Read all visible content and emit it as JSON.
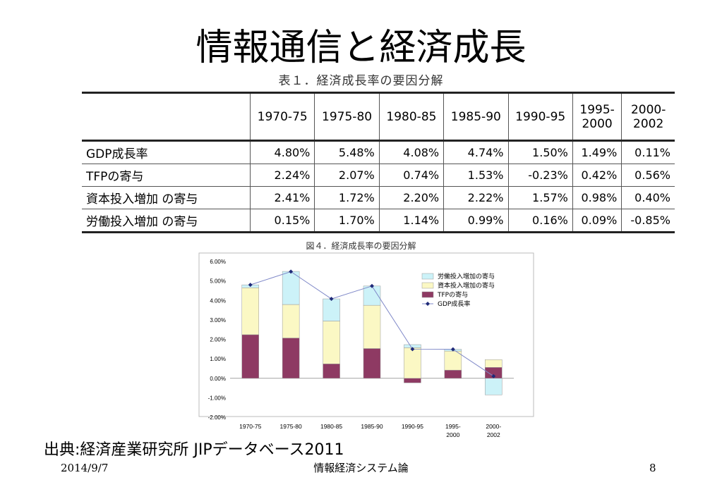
{
  "slide": {
    "title": "情報通信と経済成長",
    "source": "出典:経済産業研究所 JIPデータベース2011",
    "footer_date": "2014/9/7",
    "footer_title": "情報経済システム論",
    "page_number": "8"
  },
  "table": {
    "caption": "表１．経済成長率の要因分解",
    "columns": [
      "1970-75",
      "1975-80",
      "1980-85",
      "1985-90",
      "1990-95",
      "1995-\n2000",
      "2000-\n2002"
    ],
    "rows": [
      {
        "label": "GDP成長率",
        "values": [
          "4.80%",
          "5.48%",
          "4.08%",
          "4.74%",
          "1.50%",
          "1.49%",
          "0.11%"
        ]
      },
      {
        "label": "TFPの寄与",
        "values": [
          "2.24%",
          "2.07%",
          "0.74%",
          "1.53%",
          "-0.23%",
          "0.42%",
          "0.56%"
        ]
      },
      {
        "label": "資本投入増加 の寄与",
        "values": [
          "2.41%",
          "1.72%",
          "2.20%",
          "2.22%",
          "1.57%",
          "0.98%",
          "0.40%"
        ]
      },
      {
        "label": "労働投入増加 の寄与",
        "values": [
          "0.15%",
          "1.70%",
          "1.14%",
          "0.99%",
          "0.16%",
          "0.09%",
          "-0.85%"
        ]
      }
    ]
  },
  "chart_data": {
    "type": "bar",
    "stacked": true,
    "caption": "図４．経済成長率の要因分解",
    "categories": [
      "1970-75",
      "1975-80",
      "1980-85",
      "1985-90",
      "1990-95",
      "1995-\n2000",
      "2000-\n2002"
    ],
    "ylim": [
      -2.0,
      6.0
    ],
    "yticks": [
      "6.00%",
      "5.00%",
      "4.00%",
      "3.00%",
      "2.00%",
      "1.00%",
      "0.00%",
      "-1.00%",
      "-2.00%"
    ],
    "ytick_values": [
      6,
      5,
      4,
      3,
      2,
      1,
      0,
      -1,
      -2
    ],
    "legend_position": "top-right",
    "series": [
      {
        "name": "労働投入増加の寄与",
        "color": "#ccf2f8",
        "values": [
          0.15,
          1.7,
          1.14,
          0.99,
          0.16,
          0.09,
          -0.85
        ]
      },
      {
        "name": "資本投入増加の寄与",
        "color": "#fbf8c4",
        "values": [
          2.41,
          1.72,
          2.2,
          2.22,
          1.57,
          0.98,
          0.4
        ]
      },
      {
        "name": "TFPの寄与",
        "color": "#8e3a63",
        "values": [
          2.24,
          2.07,
          0.74,
          1.53,
          -0.23,
          0.42,
          0.56
        ]
      }
    ],
    "line": {
      "name": "GDP成長率",
      "color": "#1f2a78",
      "values": [
        4.8,
        5.48,
        4.08,
        4.74,
        1.5,
        1.49,
        0.11
      ]
    }
  }
}
